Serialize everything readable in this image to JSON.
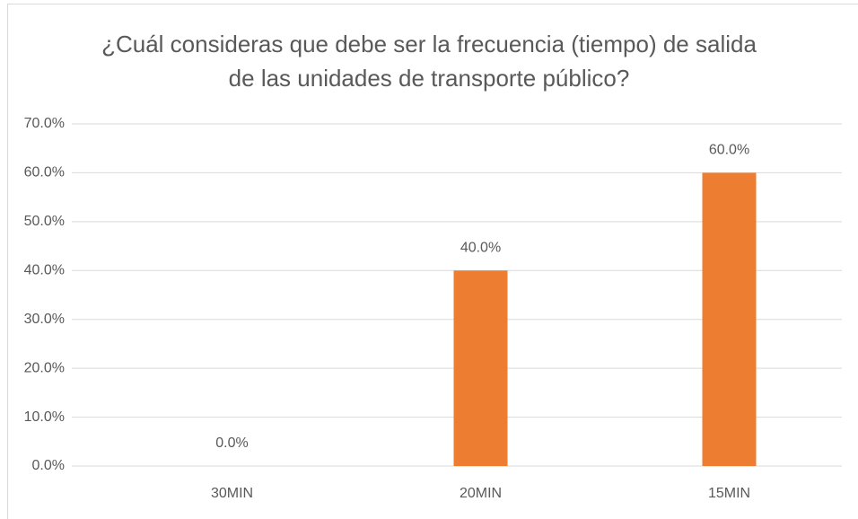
{
  "chart_data": {
    "type": "bar",
    "title": "¿Cuál consideras que debe ser la frecuencia (tiempo) de salida de las unidades de transporte público?",
    "categories": [
      "30MIN",
      "20MIN",
      "15MIN"
    ],
    "values": [
      0,
      40,
      60
    ],
    "value_labels": [
      "0.0%",
      "40.0%",
      "60.0%"
    ],
    "color": "#ed7d31",
    "ylim": [
      0,
      70
    ],
    "yticks": [
      {
        "value": 0,
        "label": "0.0%"
      },
      {
        "value": 10,
        "label": "10.0%"
      },
      {
        "value": 20,
        "label": "20.0%"
      },
      {
        "value": 30,
        "label": "30.0%"
      },
      {
        "value": 40,
        "label": "40.0%"
      },
      {
        "value": 50,
        "label": "50.0%"
      },
      {
        "value": 60,
        "label": "60.0%"
      },
      {
        "value": 70,
        "label": "70.0%"
      }
    ],
    "grid": true
  }
}
